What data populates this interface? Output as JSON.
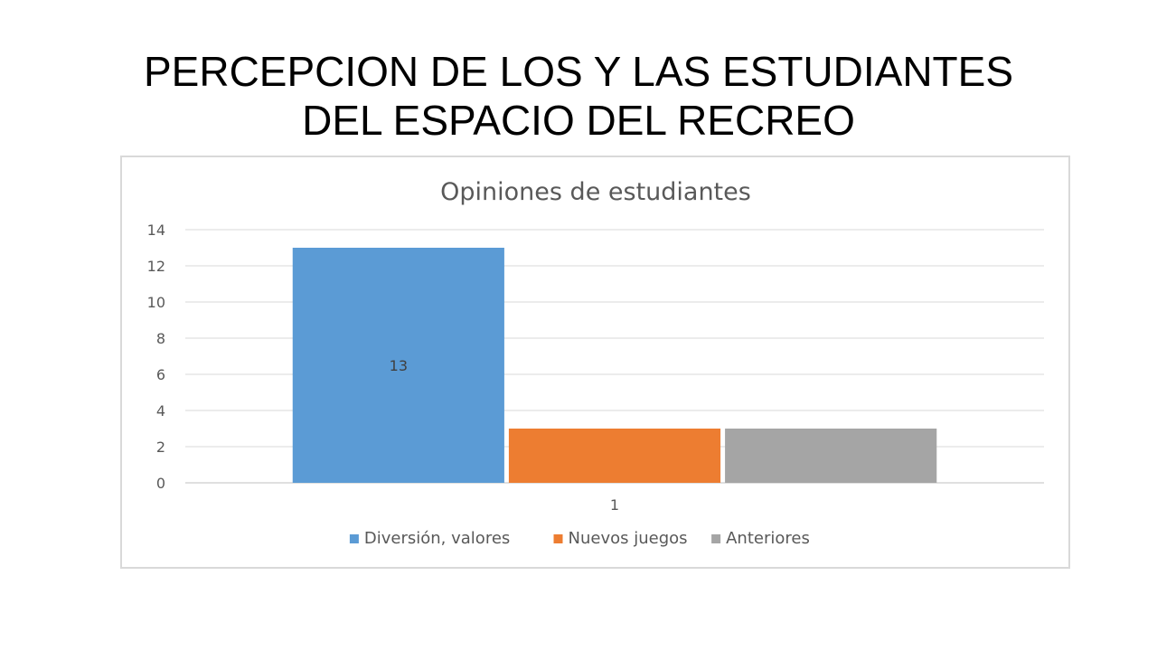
{
  "slide": {
    "title_line1": "PERCEPCION DE LOS Y LAS ESTUDIANTES",
    "title_line2": "DEL ESPACIO DEL RECREO"
  },
  "chart_data": {
    "type": "bar",
    "title": "Opiniones de estudiantes",
    "categories": [
      "1"
    ],
    "series": [
      {
        "name": "Diversión, valores",
        "values": [
          13
        ],
        "color": "#5b9bd5"
      },
      {
        "name": "Nuevos juegos",
        "values": [
          3
        ],
        "color": "#ed7d31"
      },
      {
        "name": "Anteriores",
        "values": [
          3
        ],
        "color": "#a5a5a5"
      }
    ],
    "data_labels": [
      {
        "series": "Diversión, valores",
        "text": "13"
      }
    ],
    "ylim": [
      0,
      14
    ],
    "yticks": [
      0,
      2,
      4,
      6,
      8,
      10,
      12,
      14
    ],
    "grid": true,
    "legend": "bottom"
  }
}
